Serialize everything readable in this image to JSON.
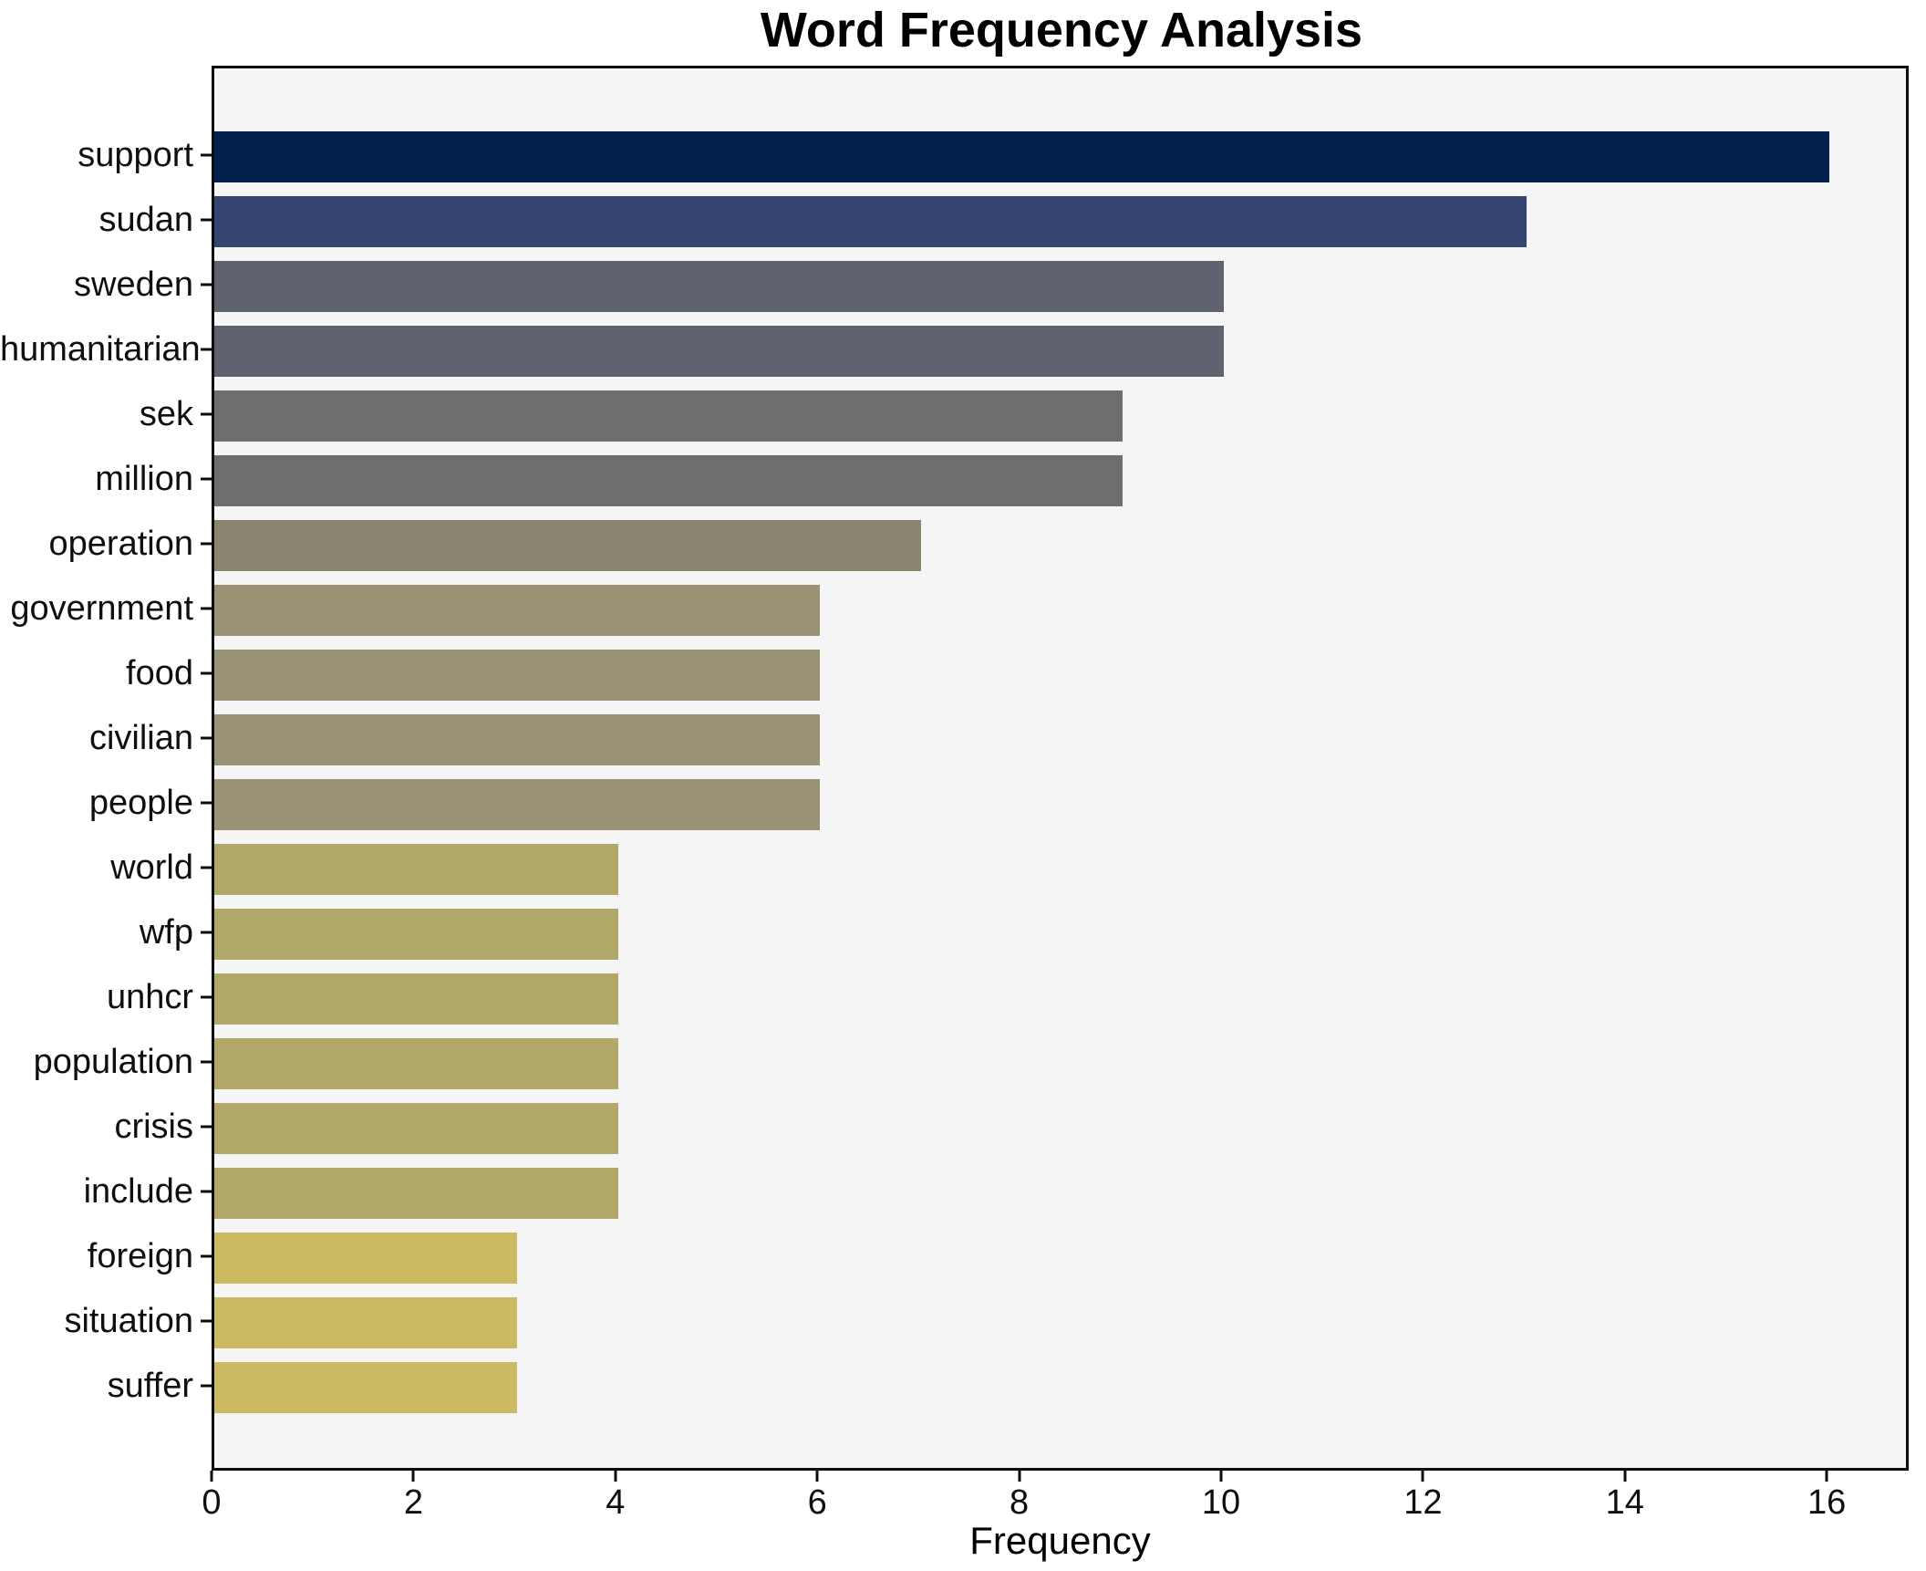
{
  "chart_data": {
    "type": "bar",
    "orientation": "horizontal",
    "title": "Word Frequency Analysis",
    "xlabel": "Frequency",
    "ylabel": "",
    "categories": [
      "support",
      "sudan",
      "sweden",
      "humanitarian",
      "sek",
      "million",
      "operation",
      "government",
      "food",
      "civilian",
      "people",
      "world",
      "wfp",
      "unhcr",
      "population",
      "crisis",
      "include",
      "foreign",
      "situation",
      "suffer"
    ],
    "values": [
      16,
      13,
      10,
      10,
      9,
      9,
      7,
      6,
      6,
      6,
      6,
      4,
      4,
      4,
      4,
      4,
      4,
      3,
      3,
      3
    ],
    "bar_colors": [
      "#03214e",
      "#344571",
      "#5e636f",
      "#5e636f",
      "#6e6e6e",
      "#6e6e6e",
      "#8a8571",
      "#9a9274",
      "#9a9274",
      "#9a9274",
      "#9a9274",
      "#b2a869",
      "#b2a869",
      "#b2a869",
      "#b2a869",
      "#b2a869",
      "#b2a869",
      "#ccba62",
      "#ccba62",
      "#ccba62"
    ],
    "xlim": [
      0,
      16.8
    ],
    "x_ticks": [
      0,
      2,
      4,
      6,
      8,
      10,
      12,
      14,
      16
    ],
    "grid": false,
    "legend": null,
    "plot_background": "#f5f5f6",
    "figure_background": "#ffffff",
    "spine_color": "#0c0c0c"
  }
}
